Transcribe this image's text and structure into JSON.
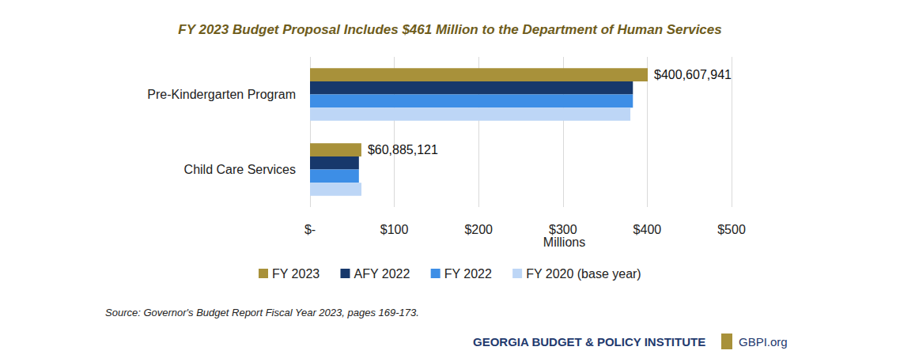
{
  "chart_data": {
    "type": "bar",
    "orientation": "horizontal",
    "title": "FY 2023 Budget Proposal Includes $461 Million to the Department of Human Services",
    "categories": [
      "Pre-Kindergarten Program",
      "Child Care Services"
    ],
    "series": [
      {
        "name": "FY 2023",
        "color": "#a8913a",
        "values": [
          400.607941,
          60.885121
        ],
        "value_labels": [
          "$400,607,941",
          "$60,885,121"
        ],
        "data_labels": true
      },
      {
        "name": "AFY 2022",
        "color": "#17386b",
        "values": [
          383,
          58
        ]
      },
      {
        "name": "FY 2022",
        "color": "#3d8ee6",
        "values": [
          383,
          58
        ]
      },
      {
        "name": "FY 2020 (base year)",
        "color": "#bdd6f6",
        "values": [
          380,
          61
        ]
      }
    ],
    "xlim": [
      0,
      500
    ],
    "xticks": [
      {
        "value": 0,
        "label": "$-"
      },
      {
        "value": 100,
        "label": "$100"
      },
      {
        "value": 200,
        "label": "$200"
      },
      {
        "value": 300,
        "label": "$300"
      },
      {
        "value": 400,
        "label": "$400"
      },
      {
        "value": 500,
        "label": "$500"
      }
    ],
    "xlabel": "Millions",
    "grid": true,
    "legend": "bottom",
    "source": "Source: Governor's Budget Report Fiscal Year 2023, pages 169-173.",
    "credit": [
      "GEORGIA BUDGET & POLICY INSTITUTE",
      "GBPI.org"
    ]
  }
}
